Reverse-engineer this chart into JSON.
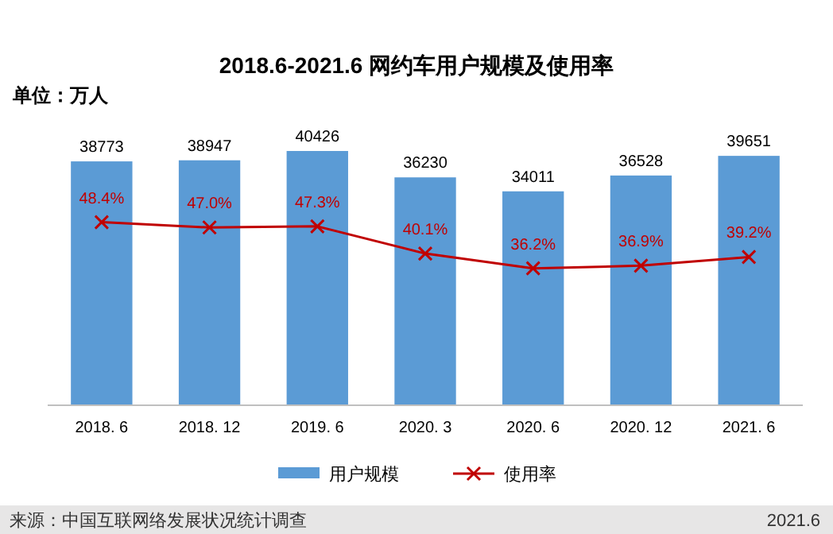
{
  "chart_data": {
    "type": "bar",
    "title": "2018.6-2021.6 网约车用户规模及使用率",
    "subtitle": "单位：万人",
    "categories": [
      "2018. 6",
      "2018. 12",
      "2019. 6",
      "2020. 3",
      "2020. 6",
      "2020. 12",
      "2021. 6"
    ],
    "series": [
      {
        "name": "用户规模",
        "color": "#5b9bd5",
        "values": [
          38773,
          38947,
          40426,
          36230,
          34011,
          36528,
          39651
        ],
        "value_labels": [
          "38773",
          "38947",
          "40426",
          "36230",
          "34011",
          "36528",
          "39651"
        ]
      },
      {
        "name": "使用率",
        "type": "line",
        "axis": "y2",
        "color": "#c00000",
        "marker": "cross",
        "values": [
          48.4,
          47.0,
          47.3,
          40.1,
          36.2,
          36.9,
          39.2
        ],
        "value_labels": [
          "48.4%",
          "47.0%",
          "47.3%",
          "40.1%",
          "36.2%",
          "36.9%",
          "39.2%"
        ]
      }
    ],
    "legend": "bottom",
    "annotations": [
      "来源：中国互联网络发展状况统计调查",
      "2021.6"
    ]
  }
}
